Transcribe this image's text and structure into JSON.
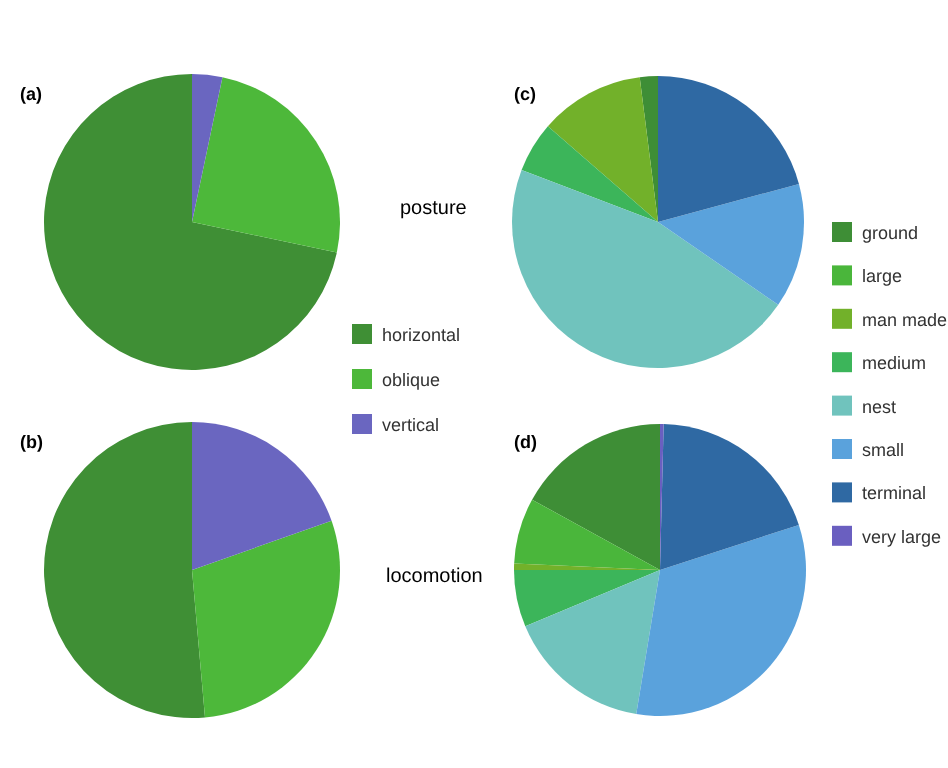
{
  "chart_data": [
    {
      "type": "pie",
      "title": "(a)",
      "annotations": [
        "posture"
      ],
      "categories": [
        "horizontal",
        "oblique",
        "vertical"
      ],
      "values": [
        71.7,
        25,
        3.3
      ],
      "colors": [
        "#3f8f35",
        "#4db83a",
        "#6a66c0"
      ],
      "legend": "bottom right"
    },
    {
      "type": "pie",
      "title": "(b)",
      "annotations": [
        "locomotion"
      ],
      "categories": [
        null,
        null,
        null
      ],
      "values": [
        51.4,
        29,
        19.6
      ],
      "colors": [
        "#3f8f35",
        "#4db83a",
        "#6a66c0"
      ]
    },
    {
      "type": "pie",
      "title": "(c)",
      "categories": [
        "ground",
        "large",
        "man made",
        "medium",
        "nest",
        "small",
        "terminal",
        "very large"
      ],
      "values": [
        2,
        0,
        11.6,
        5.6,
        46.2,
        13.8,
        20.8,
        0
      ],
      "colors": [
        "#3e8e36",
        "#4ab63b",
        "#72b12a",
        "#3cb55a",
        "#70c3bd",
        "#5aa2dc",
        "#2f69a3",
        "#6a5fc0"
      ],
      "legend": "right"
    },
    {
      "type": "pie",
      "title": "(d)",
      "categories": [
        null,
        null,
        null,
        null,
        null,
        null,
        null,
        null
      ],
      "values": [
        17,
        7.3,
        0.7,
        6.3,
        16.1,
        32.6,
        19.6,
        0.4
      ],
      "colors": [
        "#3e8e36",
        "#4ab63b",
        "#72b12a",
        "#3cb55a",
        "#70c3bd",
        "#5aa2dc",
        "#2f69a3",
        "#6a5fc0"
      ]
    }
  ]
}
